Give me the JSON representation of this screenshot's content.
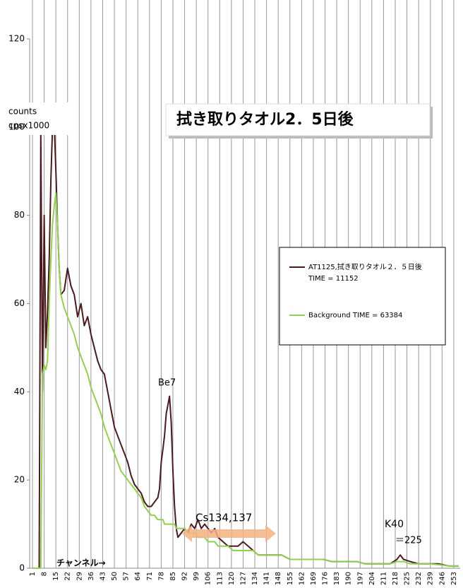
{
  "chart_data": {
    "type": "line",
    "title": "拭き取りタオル2．5日後",
    "y_label": [
      "counts",
      "cpsx1000"
    ],
    "x_label": "チャンネル→",
    "annotations": [
      "Be7",
      "Cs134,137",
      "K40",
      "＝225"
    ],
    "xlim": [
      1,
      256
    ],
    "xticks": [
      1,
      8,
      15,
      22,
      29,
      36,
      43,
      50,
      57,
      64,
      71,
      78,
      85,
      92,
      99,
      106,
      113,
      120,
      127,
      134,
      141,
      148,
      155,
      162,
      169,
      176,
      183,
      190,
      197,
      204,
      211,
      218,
      225,
      232,
      239,
      246,
      253
    ],
    "ylim": [
      0,
      120
    ],
    "yticks": [
      0,
      20,
      40,
      60,
      80,
      100,
      120
    ],
    "grid": "x",
    "x": [
      1,
      3,
      5,
      6,
      7,
      8,
      9,
      10,
      11,
      12,
      13,
      14,
      15,
      16,
      17,
      18,
      20,
      22,
      24,
      26,
      28,
      30,
      32,
      34,
      36,
      38,
      40,
      42,
      44,
      46,
      48,
      50,
      52,
      54,
      56,
      58,
      60,
      62,
      64,
      66,
      68,
      70,
      72,
      74,
      76,
      77,
      78,
      79,
      80,
      81,
      82,
      83,
      84,
      85,
      86,
      87,
      88,
      90,
      92,
      94,
      96,
      98,
      100,
      102,
      104,
      106,
      108,
      110,
      112,
      115,
      118,
      121,
      124,
      127,
      130,
      133,
      136,
      140,
      145,
      150,
      155,
      160,
      165,
      170,
      175,
      180,
      185,
      190,
      195,
      200,
      205,
      210,
      215,
      219,
      221,
      223,
      227,
      232,
      238,
      244,
      250,
      256
    ],
    "series": [
      {
        "name": "AT1125,拭き取りタオル２．５日後",
        "time": "TIME = 11152",
        "color": "#4b1a1f",
        "values": [
          0,
          0,
          0,
          99,
          40,
          80,
          50,
          58,
          70,
          88,
          100,
          101,
          90,
          78,
          68,
          62,
          63,
          68,
          64,
          62,
          57,
          60,
          55,
          57,
          53,
          50,
          47,
          45,
          44,
          40,
          36,
          32,
          30,
          28,
          26,
          24,
          21,
          19,
          18,
          17,
          15,
          14,
          14,
          15,
          16,
          18,
          24,
          27,
          30,
          35,
          37,
          39,
          33,
          22,
          14,
          9,
          7,
          8,
          9,
          8,
          10,
          9,
          11,
          9,
          10,
          9,
          8,
          9,
          7,
          6,
          5,
          5,
          5,
          6,
          5,
          4,
          3,
          3,
          3,
          3,
          2,
          2,
          2,
          2,
          2,
          1.5,
          1.5,
          1.5,
          1.5,
          1,
          1,
          1,
          1,
          2,
          3,
          2,
          1.5,
          1,
          1,
          1,
          0.5,
          0.5
        ]
      },
      {
        "name": "Background  TIME = 63384",
        "color": "#92d050",
        "values": [
          0,
          0,
          0,
          0,
          44,
          46,
          45,
          47,
          60,
          70,
          78,
          82,
          85,
          78,
          68,
          62,
          59,
          57,
          55,
          53,
          50,
          48,
          46,
          44,
          41,
          39,
          37,
          35,
          32,
          30,
          28,
          26,
          24,
          22,
          21,
          20,
          19,
          18,
          17,
          16,
          14,
          13,
          12,
          12,
          11,
          11,
          11,
          11,
          10,
          10,
          10,
          10,
          10,
          10,
          10,
          9,
          9,
          9,
          9,
          8,
          8,
          8,
          7,
          7,
          7,
          6,
          6,
          6,
          5,
          5,
          5,
          4,
          4,
          4,
          4,
          4,
          3,
          3,
          3,
          3,
          2,
          2,
          2,
          2,
          2,
          1.5,
          1.5,
          1.5,
          1.5,
          1,
          1,
          1,
          1,
          1.5,
          1.5,
          1.5,
          1,
          1,
          1,
          0.8,
          0.5,
          0.5
        ]
      }
    ]
  }
}
